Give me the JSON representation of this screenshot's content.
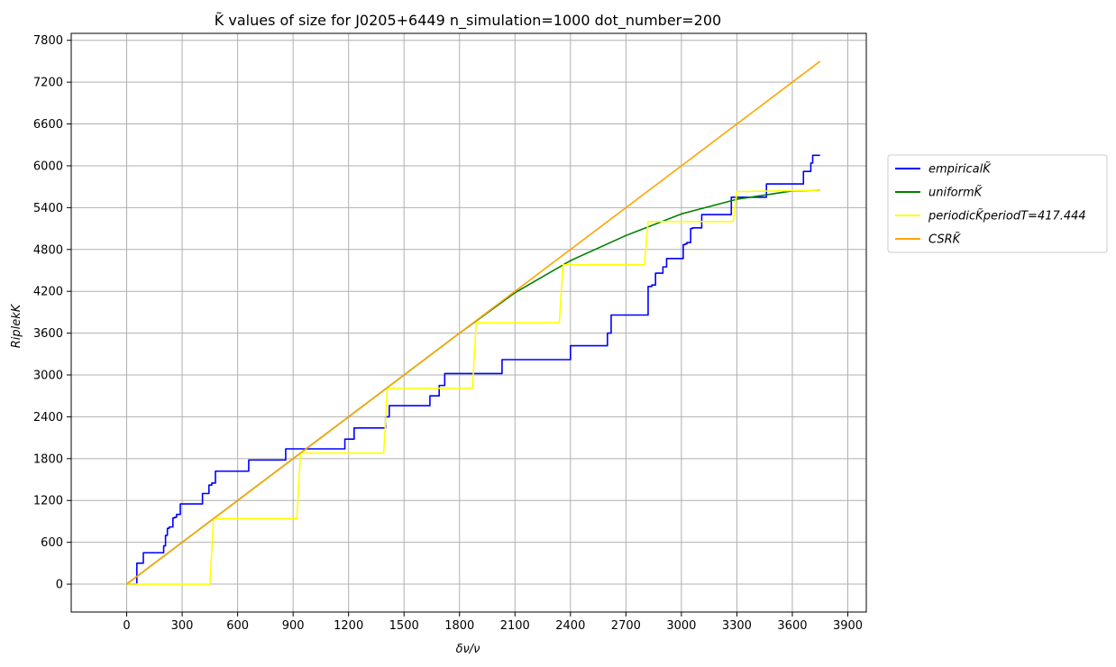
{
  "chart_data": {
    "type": "line",
    "title": "K̃ values of size for J0205+6449 n_simulation=1000 dot_number=200",
    "xlabel": "δν/ν",
    "ylabel": "RiplekK",
    "xlim": [
      -300,
      4000
    ],
    "ylim": [
      -400,
      7900
    ],
    "xticks": [
      0,
      300,
      600,
      900,
      1200,
      1500,
      1800,
      2100,
      2400,
      2700,
      3000,
      3300,
      3600,
      3900
    ],
    "yticks": [
      0,
      600,
      1200,
      1800,
      2400,
      3000,
      3600,
      4200,
      4800,
      5400,
      6000,
      6600,
      7200,
      7800
    ],
    "grid": true,
    "legend_position": "outside-right",
    "series": [
      {
        "name": "empiricalK̃",
        "color": "#0000ff",
        "step": true,
        "x": [
          0,
          35,
          55,
          75,
          90,
          110,
          180,
          200,
          210,
          220,
          230,
          250,
          260,
          270,
          290,
          305,
          400,
          410,
          430,
          445,
          460,
          480,
          650,
          660,
          850,
          860,
          1170,
          1180,
          1200,
          1230,
          1250,
          1380,
          1400,
          1420,
          1630,
          1640,
          1670,
          1690,
          1700,
          1720,
          2020,
          2030,
          2390,
          2400,
          2580,
          2600,
          2620,
          2800,
          2820,
          2840,
          2860,
          2890,
          2900,
          2920,
          3000,
          3010,
          3020,
          3030,
          3050,
          3060,
          3100,
          3110,
          3260,
          3270,
          3450,
          3460,
          3650,
          3660,
          3690,
          3700,
          3710,
          3750
        ],
        "y": [
          0,
          0,
          300,
          300,
          450,
          450,
          450,
          550,
          700,
          800,
          820,
          950,
          960,
          1000,
          1150,
          1150,
          1150,
          1300,
          1300,
          1420,
          1450,
          1620,
          1620,
          1780,
          1780,
          1940,
          1940,
          2080,
          2080,
          2240,
          2240,
          2240,
          2400,
          2560,
          2560,
          2700,
          2700,
          2850,
          2850,
          3020,
          3020,
          3220,
          3220,
          3420,
          3420,
          3600,
          3860,
          3860,
          4270,
          4290,
          4460,
          4460,
          4550,
          4670,
          4670,
          4870,
          4880,
          4900,
          5100,
          5110,
          5110,
          5300,
          5300,
          5550,
          5550,
          5740,
          5740,
          5920,
          5920,
          6040,
          6150,
          6150
        ]
      },
      {
        "name": "uniformK̃",
        "color": "#008000",
        "step": false,
        "x": [
          0,
          1800,
          2100,
          2400,
          2700,
          3000,
          3300,
          3600,
          3750
        ],
        "y": [
          0,
          3600,
          4180,
          4640,
          5000,
          5310,
          5520,
          5640,
          5650
        ]
      },
      {
        "name": "periodicK̃periodT=417.444",
        "color": "#ffff00",
        "step": false,
        "x": [
          0,
          450,
          470,
          920,
          940,
          1390,
          1410,
          1870,
          1890,
          2340,
          2360,
          2800,
          2820,
          3280,
          3300,
          3750
        ],
        "y": [
          0,
          0,
          940,
          940,
          1880,
          1880,
          2810,
          2810,
          3750,
          3750,
          4580,
          4580,
          5200,
          5200,
          5630,
          5650
        ]
      },
      {
        "name": "CSRK̃",
        "color": "#ffa500",
        "step": false,
        "x": [
          0,
          3750
        ],
        "y": [
          0,
          7500
        ]
      }
    ]
  }
}
